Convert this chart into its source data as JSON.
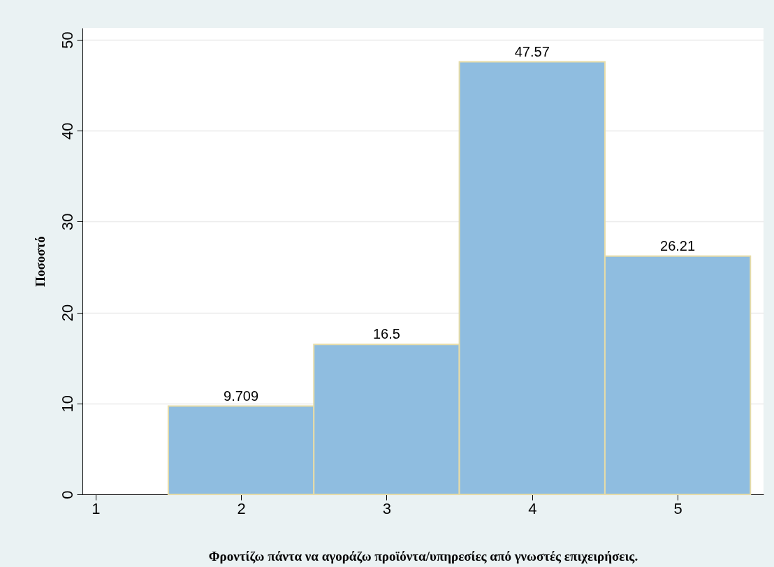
{
  "chart_data": {
    "type": "histogram",
    "xlabel": "Φροντίζω πάντα να αγοράζω προϊόντα/υπηρεσίες από γνωστές επιχειρήσεις.",
    "ylabel": "Ποσοστό",
    "bins": [
      1.5,
      2.5,
      3.5,
      4.5,
      5.5
    ],
    "values": [
      9.709,
      16.5,
      47.57,
      26.21
    ],
    "color": "#8fbde0",
    "xlim": [
      0.91,
      5.59
    ],
    "xticks": [
      1,
      2,
      3,
      4,
      5
    ],
    "ylim": [
      0,
      51.3
    ],
    "yticks": [
      0,
      10,
      20,
      30,
      40,
      50
    ],
    "grid": "y",
    "data_labels": true
  }
}
